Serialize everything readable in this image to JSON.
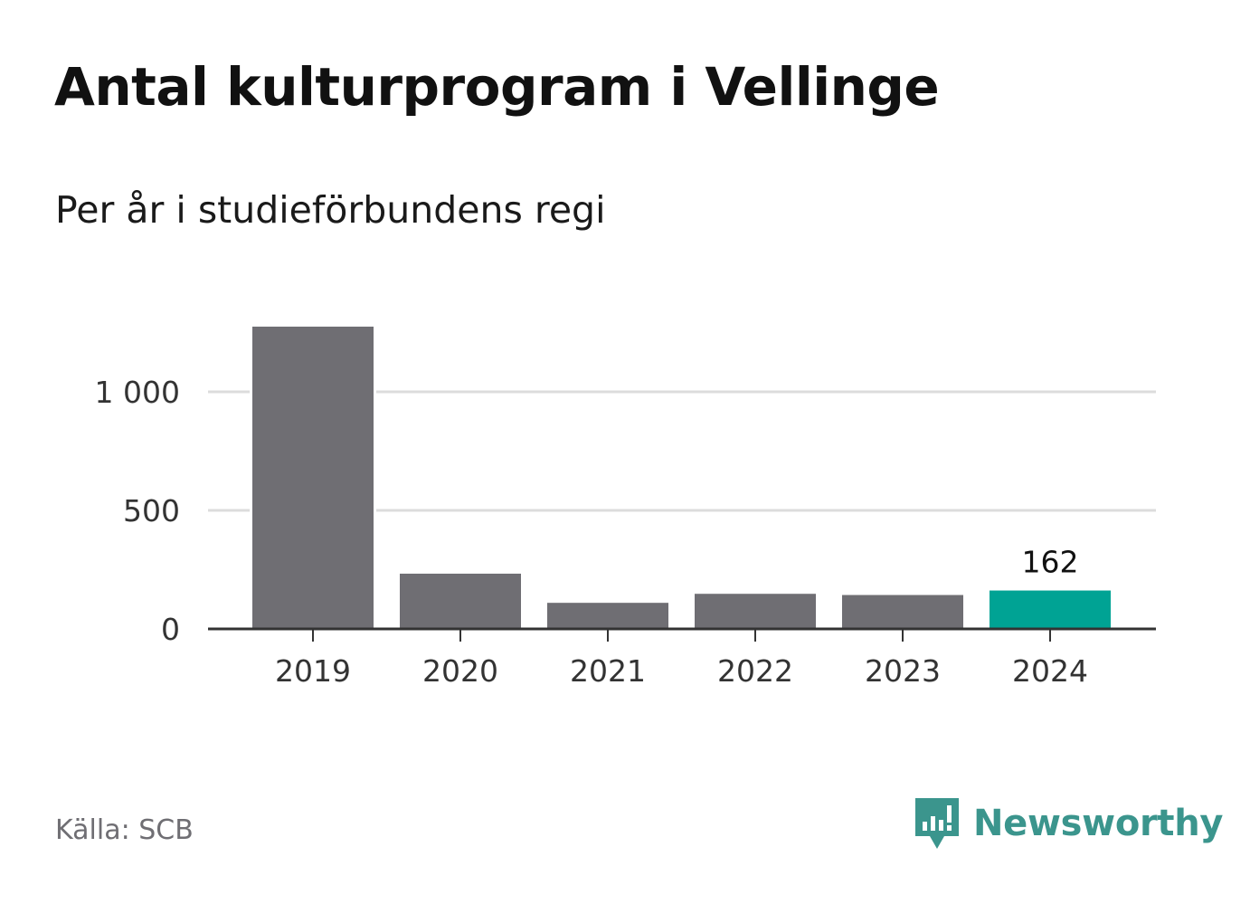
{
  "header": {
    "title": "Antal kulturprogram i Vellinge",
    "subtitle": "Per år i studieförbundens regi"
  },
  "footer": {
    "source": "Källa: SCB",
    "brand": "Newsworthy",
    "brand_icon": "newsworthy-logo-icon"
  },
  "colors": {
    "bar": "#6f6e73",
    "highlight": "#00a394",
    "grid": "#dcdcdc",
    "axis": "#333333",
    "brand": "#3b958d"
  },
  "chart_data": {
    "type": "bar",
    "categories": [
      "2019",
      "2020",
      "2021",
      "2022",
      "2023",
      "2024"
    ],
    "values": [
      1275,
      233,
      110,
      148,
      143,
      162
    ],
    "highlight_index": 5,
    "data_labels": [
      "",
      "",
      "",
      "",
      "",
      "162"
    ],
    "yticks": [
      0,
      500,
      1000
    ],
    "ytick_labels": [
      "0",
      "500",
      "1 000"
    ],
    "ylim": [
      0,
      1275
    ],
    "grid": true,
    "title": "Antal kulturprogram i Vellinge",
    "subtitle": "Per år i studieförbundens regi",
    "xlabel": "",
    "ylabel": ""
  }
}
